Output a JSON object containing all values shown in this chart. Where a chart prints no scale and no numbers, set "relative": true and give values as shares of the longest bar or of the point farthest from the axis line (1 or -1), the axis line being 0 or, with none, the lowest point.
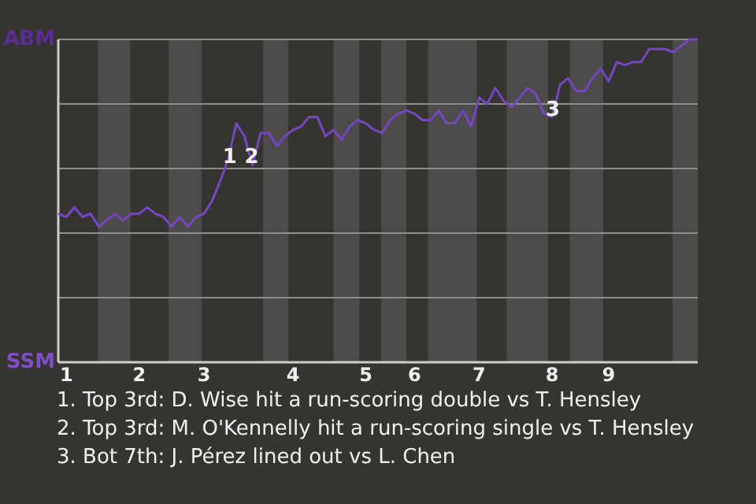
{
  "chart_data": {
    "type": "line",
    "relative": true,
    "categories": [
      null,
      "1",
      null,
      null,
      null,
      null,
      null,
      null,
      null,
      null,
      "2",
      null,
      null,
      null,
      null,
      null,
      null,
      null,
      "3",
      null,
      null,
      null,
      null,
      null,
      null,
      null,
      null,
      null,
      null,
      "4",
      null,
      null,
      null,
      null,
      null,
      null,
      null,
      null,
      "5",
      null,
      null,
      null,
      null,
      null,
      "6",
      null,
      null,
      null,
      null,
      null,
      null,
      null,
      "7",
      null,
      null,
      null,
      null,
      null,
      null,
      null,
      null,
      "8",
      null,
      null,
      null,
      null,
      null,
      null,
      "9",
      null,
      null,
      null,
      null,
      null,
      null,
      null,
      null,
      null,
      null,
      null
    ],
    "series": [
      {
        "color": "#7447c0",
        "values": [
          0.46,
          0.45,
          0.48,
          0.45,
          0.46,
          0.42,
          0.44,
          0.46,
          0.44,
          0.46,
          0.46,
          0.48,
          0.46,
          0.45,
          0.42,
          0.45,
          0.42,
          0.45,
          0.46,
          0.5,
          0.56,
          0.63,
          0.74,
          0.7,
          0.61,
          0.71,
          0.71,
          0.67,
          0.7,
          0.72,
          0.73,
          0.76,
          0.76,
          0.7,
          0.72,
          0.69,
          0.73,
          0.75,
          0.74,
          0.72,
          0.71,
          0.75,
          0.77,
          0.78,
          0.77,
          0.75,
          0.75,
          0.78,
          0.74,
          0.74,
          0.78,
          0.73,
          0.82,
          0.8,
          0.85,
          0.81,
          0.79,
          0.82,
          0.85,
          0.83,
          0.77,
          0.76,
          0.86,
          0.88,
          0.84,
          0.84,
          0.88,
          0.91,
          0.87,
          0.93,
          0.92,
          0.93,
          0.93,
          0.97,
          0.97,
          0.97,
          0.96,
          0.98,
          1,
          1
        ]
      }
    ],
    "grid": "y",
    "annotations": [
      "ABM",
      "SSM",
      "1",
      "2",
      "3",
      "1. Top 3rd: D. Wise hit a run-scoring double vs T. Hensley",
      "2. Top 3rd: M. O'Kennelly hit a run-scoring single vs T. Hensley",
      "3. Bot 7th: J. Pérez lined out vs L. Chen"
    ]
  }
}
